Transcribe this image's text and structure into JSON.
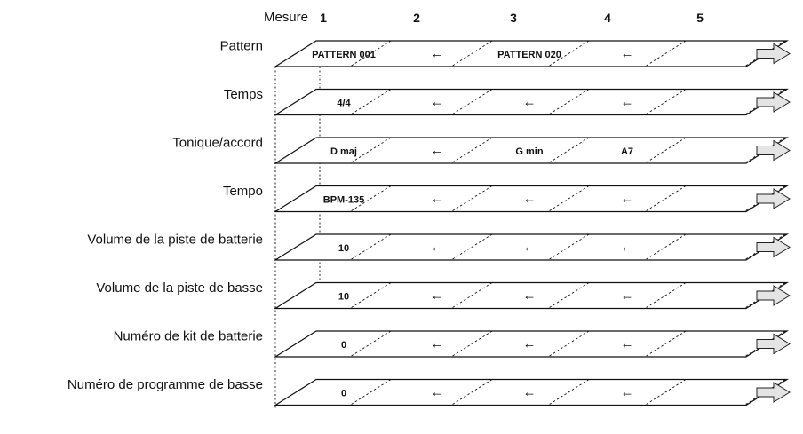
{
  "header": {
    "mesure_label": "Mesure"
  },
  "measures": [
    "1",
    "2",
    "3",
    "4",
    "5"
  ],
  "rows": [
    {
      "label": "Pattern",
      "cells": [
        "PATTERN 001",
        "←",
        "PATTERN 020",
        "←"
      ]
    },
    {
      "label": "Temps",
      "cells": [
        "4/4",
        "←",
        "←",
        "←"
      ]
    },
    {
      "label": "Tonique/accord",
      "cells": [
        "D maj",
        "←",
        "G min",
        "A7"
      ]
    },
    {
      "label": "Tempo",
      "cells": [
        "BPM-135",
        "←",
        "←",
        "←"
      ]
    },
    {
      "label": "Volume de la piste de batterie",
      "cells": [
        "10",
        "←",
        "←",
        "←"
      ]
    },
    {
      "label": "Volume de la piste de basse",
      "cells": [
        "10",
        "←",
        "←",
        "←"
      ]
    },
    {
      "label": "Numéro de kit de batterie",
      "cells": [
        "0",
        "←",
        "←",
        "←"
      ]
    },
    {
      "label": "Numéro de programme de basse",
      "cells": [
        "0",
        "←",
        "←",
        "←"
      ]
    }
  ]
}
